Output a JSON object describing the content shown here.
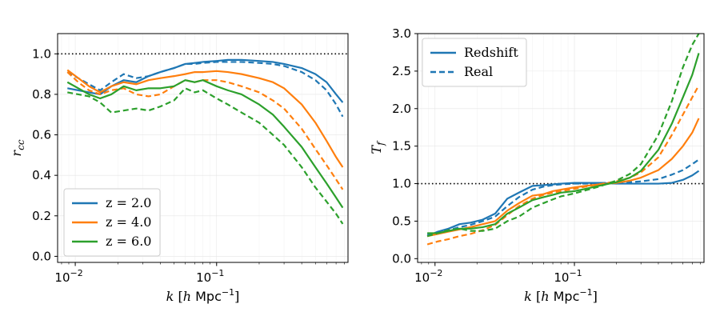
{
  "colors": {
    "blue": "#1f77b4",
    "orange": "#ff7f0e",
    "green": "#2ca02c",
    "reference": "#000000"
  },
  "chart_data": [
    {
      "type": "line",
      "name": "left",
      "xscale": "log",
      "xlim": [
        0.0075,
        0.85
      ],
      "ylim": [
        -0.03,
        1.1
      ],
      "ylabel": "r_cc",
      "xlabel": "k [h Mpc⁻¹]",
      "yticks": [
        0.0,
        0.2,
        0.4,
        0.6,
        0.8,
        1.0
      ],
      "ytick_labels": [
        "0.0",
        "0.2",
        "0.4",
        "0.6",
        "0.8",
        "1.0"
      ],
      "xticks": [
        0.01,
        0.1
      ],
      "reference_line": 1.0,
      "legend_position": "lower-left",
      "legend": [
        {
          "label": "z = 2.0",
          "color": "#1f77b4",
          "dash": "solid"
        },
        {
          "label": "z = 4.0",
          "color": "#ff7f0e",
          "dash": "solid"
        },
        {
          "label": "z = 6.0",
          "color": "#2ca02c",
          "dash": "solid"
        }
      ],
      "x": [
        0.0088,
        0.0105,
        0.0125,
        0.015,
        0.018,
        0.022,
        0.027,
        0.033,
        0.04,
        0.05,
        0.06,
        0.07,
        0.08,
        0.1,
        0.12,
        0.15,
        0.2,
        0.25,
        0.3,
        0.4,
        0.5,
        0.6,
        0.7,
        0.78
      ],
      "series": [
        {
          "name": "z = 2.0 redshift",
          "color": "#1f77b4",
          "dash": "solid",
          "values": [
            0.83,
            0.82,
            0.81,
            0.8,
            0.84,
            0.87,
            0.86,
            0.89,
            0.91,
            0.93,
            0.95,
            0.955,
            0.96,
            0.965,
            0.97,
            0.97,
            0.965,
            0.96,
            0.95,
            0.93,
            0.9,
            0.86,
            0.8,
            0.76
          ]
        },
        {
          "name": "z = 2.0 real",
          "color": "#1f77b4",
          "dash": "dashed",
          "values": [
            0.91,
            0.88,
            0.85,
            0.82,
            0.86,
            0.9,
            0.88,
            0.89,
            0.91,
            0.93,
            0.95,
            0.95,
            0.955,
            0.96,
            0.96,
            0.96,
            0.955,
            0.95,
            0.94,
            0.91,
            0.87,
            0.82,
            0.75,
            0.69
          ]
        },
        {
          "name": "z = 4.0 redshift",
          "color": "#ff7f0e",
          "dash": "solid",
          "values": [
            0.92,
            0.88,
            0.84,
            0.81,
            0.84,
            0.86,
            0.85,
            0.87,
            0.88,
            0.89,
            0.9,
            0.91,
            0.91,
            0.915,
            0.91,
            0.9,
            0.88,
            0.86,
            0.83,
            0.75,
            0.66,
            0.57,
            0.49,
            0.44
          ]
        },
        {
          "name": "z = 4.0 real",
          "color": "#ff7f0e",
          "dash": "dashed",
          "values": [
            0.91,
            0.86,
            0.82,
            0.8,
            0.82,
            0.83,
            0.8,
            0.79,
            0.8,
            0.84,
            0.87,
            0.86,
            0.87,
            0.87,
            0.86,
            0.84,
            0.81,
            0.77,
            0.73,
            0.63,
            0.53,
            0.45,
            0.38,
            0.33
          ]
        },
        {
          "name": "z = 6.0 redshift",
          "color": "#2ca02c",
          "dash": "solid",
          "values": [
            0.86,
            0.83,
            0.8,
            0.78,
            0.8,
            0.84,
            0.82,
            0.83,
            0.83,
            0.84,
            0.87,
            0.86,
            0.87,
            0.84,
            0.82,
            0.8,
            0.75,
            0.7,
            0.64,
            0.54,
            0.44,
            0.36,
            0.29,
            0.24
          ]
        },
        {
          "name": "z = 6.0 real",
          "color": "#2ca02c",
          "dash": "dashed",
          "values": [
            0.81,
            0.8,
            0.79,
            0.76,
            0.71,
            0.72,
            0.73,
            0.72,
            0.74,
            0.77,
            0.83,
            0.81,
            0.82,
            0.78,
            0.75,
            0.71,
            0.66,
            0.6,
            0.55,
            0.44,
            0.34,
            0.27,
            0.21,
            0.16
          ]
        }
      ]
    },
    {
      "type": "line",
      "name": "right",
      "xscale": "log",
      "xlim": [
        0.0075,
        0.85
      ],
      "ylim": [
        -0.05,
        3.0
      ],
      "ylabel": "T_f",
      "xlabel": "k [h Mpc⁻¹]",
      "yticks": [
        0.0,
        0.5,
        1.0,
        1.5,
        2.0,
        2.5,
        3.0
      ],
      "ytick_labels": [
        "0.0",
        "0.5",
        "1.0",
        "1.5",
        "2.0",
        "2.5",
        "3.0"
      ],
      "xticks": [
        0.01,
        0.1
      ],
      "reference_line": 1.0,
      "legend_position": "upper-left",
      "legend": [
        {
          "label": "Redshift",
          "color": "#1f77b4",
          "dash": "solid"
        },
        {
          "label": "Real",
          "color": "#1f77b4",
          "dash": "dashed"
        }
      ],
      "x": [
        0.0088,
        0.0105,
        0.0125,
        0.015,
        0.018,
        0.022,
        0.027,
        0.033,
        0.04,
        0.05,
        0.06,
        0.07,
        0.08,
        0.1,
        0.12,
        0.15,
        0.2,
        0.25,
        0.3,
        0.4,
        0.5,
        0.6,
        0.7,
        0.78
      ],
      "series": [
        {
          "name": "z = 2.0 redshift",
          "color": "#1f77b4",
          "dash": "solid",
          "values": [
            0.3,
            0.36,
            0.4,
            0.46,
            0.48,
            0.52,
            0.6,
            0.8,
            0.88,
            0.97,
            0.98,
            0.99,
            1.0,
            1.01,
            1.01,
            1.01,
            1.0,
            1.0,
            1.0,
            1.0,
            1.01,
            1.05,
            1.11,
            1.17
          ]
        },
        {
          "name": "z = 2.0 real",
          "color": "#1f77b4",
          "dash": "dashed",
          "values": [
            0.32,
            0.34,
            0.38,
            0.42,
            0.45,
            0.5,
            0.56,
            0.7,
            0.82,
            0.92,
            0.96,
            0.98,
            0.99,
            1.0,
            1.0,
            1.01,
            1.01,
            1.02,
            1.03,
            1.06,
            1.12,
            1.18,
            1.26,
            1.32
          ]
        },
        {
          "name": "z = 4.0 redshift",
          "color": "#ff7f0e",
          "dash": "solid",
          "values": [
            0.3,
            0.33,
            0.36,
            0.39,
            0.42,
            0.46,
            0.5,
            0.64,
            0.74,
            0.84,
            0.86,
            0.9,
            0.92,
            0.95,
            0.97,
            0.99,
            1.01,
            1.04,
            1.08,
            1.18,
            1.33,
            1.5,
            1.68,
            1.87
          ]
        },
        {
          "name": "z = 4.0 real",
          "color": "#ff7f0e",
          "dash": "dashed",
          "values": [
            0.19,
            0.23,
            0.26,
            0.3,
            0.33,
            0.38,
            0.45,
            0.58,
            0.7,
            0.8,
            0.85,
            0.88,
            0.9,
            0.93,
            0.96,
            0.99,
            1.03,
            1.08,
            1.15,
            1.35,
            1.65,
            1.92,
            2.15,
            2.31
          ]
        },
        {
          "name": "z = 6.0 redshift",
          "color": "#2ca02c",
          "dash": "solid",
          "values": [
            0.34,
            0.34,
            0.37,
            0.4,
            0.4,
            0.42,
            0.46,
            0.6,
            0.68,
            0.78,
            0.82,
            0.85,
            0.88,
            0.9,
            0.93,
            0.97,
            1.02,
            1.08,
            1.17,
            1.45,
            1.8,
            2.15,
            2.45,
            2.74
          ]
        },
        {
          "name": "z = 6.0 real",
          "color": "#2ca02c",
          "dash": "dashed",
          "values": [
            0.3,
            0.34,
            0.38,
            0.4,
            0.37,
            0.37,
            0.4,
            0.5,
            0.56,
            0.68,
            0.74,
            0.79,
            0.83,
            0.87,
            0.91,
            0.96,
            1.04,
            1.13,
            1.26,
            1.65,
            2.1,
            2.55,
            2.85,
            3.0
          ]
        }
      ]
    }
  ]
}
